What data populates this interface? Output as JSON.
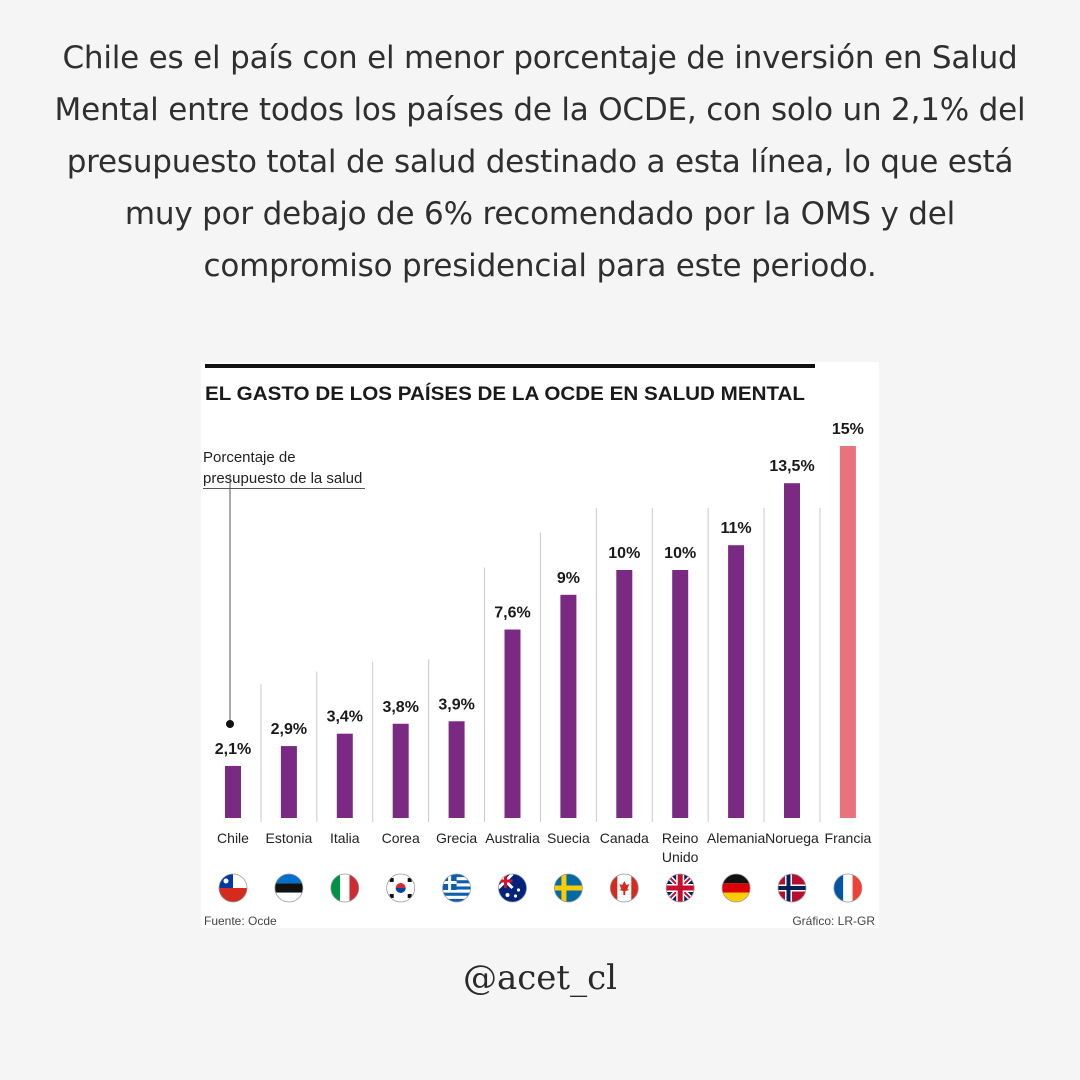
{
  "headline": "Chile es el país con el menor porcentaje de inversión en Salud Mental entre todos los países de la OCDE, con solo un 2,1% del presupuesto total de salud destinado a esta línea, lo que está muy por debajo de 6% recomendado por la OMS y del compromiso presidencial para este periodo.",
  "handle": "@acet_cl",
  "colors": {
    "bar": "#7a2a83",
    "highlight": "#e8737d",
    "text": "#2f2f2f"
  },
  "chart_data": {
    "type": "bar",
    "title": "EL GASTO DE LOS PAÍSES DE LA OCDE EN SALUD MENTAL",
    "ylabel_line1": "Porcentaje de",
    "ylabel_line2": "presupuesto de la salud",
    "ylim": [
      0,
      15
    ],
    "categories": [
      "Chile",
      "Estonia",
      "Italia",
      "Corea",
      "Grecia",
      "Australia",
      "Suecia",
      "Canada",
      "Reino Unido",
      "Alemania",
      "Noruega",
      "Francia"
    ],
    "category_lines": [
      [
        "Chile"
      ],
      [
        "Estonia"
      ],
      [
        "Italia"
      ],
      [
        "Corea"
      ],
      [
        "Grecia"
      ],
      [
        "Australia"
      ],
      [
        "Suecia"
      ],
      [
        "Canada"
      ],
      [
        "Reino",
        "Unido"
      ],
      [
        "Alemania"
      ],
      [
        "Noruega"
      ],
      [
        "Francia"
      ]
    ],
    "values": [
      2.1,
      2.9,
      3.4,
      3.8,
      3.9,
      7.6,
      9,
      10,
      10,
      11,
      13.5,
      15
    ],
    "labels": [
      "2,1%",
      "2,9%",
      "3,4%",
      "3,8%",
      "3,9%",
      "7,6%",
      "9%",
      "10%",
      "10%",
      "11%",
      "13,5%",
      "15%"
    ],
    "flags": [
      "chile-flag",
      "estonia-flag",
      "italy-flag",
      "korea-flag",
      "greece-flag",
      "australia-flag",
      "sweden-flag",
      "canada-flag",
      "uk-flag",
      "germany-flag",
      "norway-flag",
      "france-flag"
    ],
    "highlight_index": 11,
    "source": "Fuente: Ocde",
    "credit": "Gráfico: LR-GR"
  }
}
